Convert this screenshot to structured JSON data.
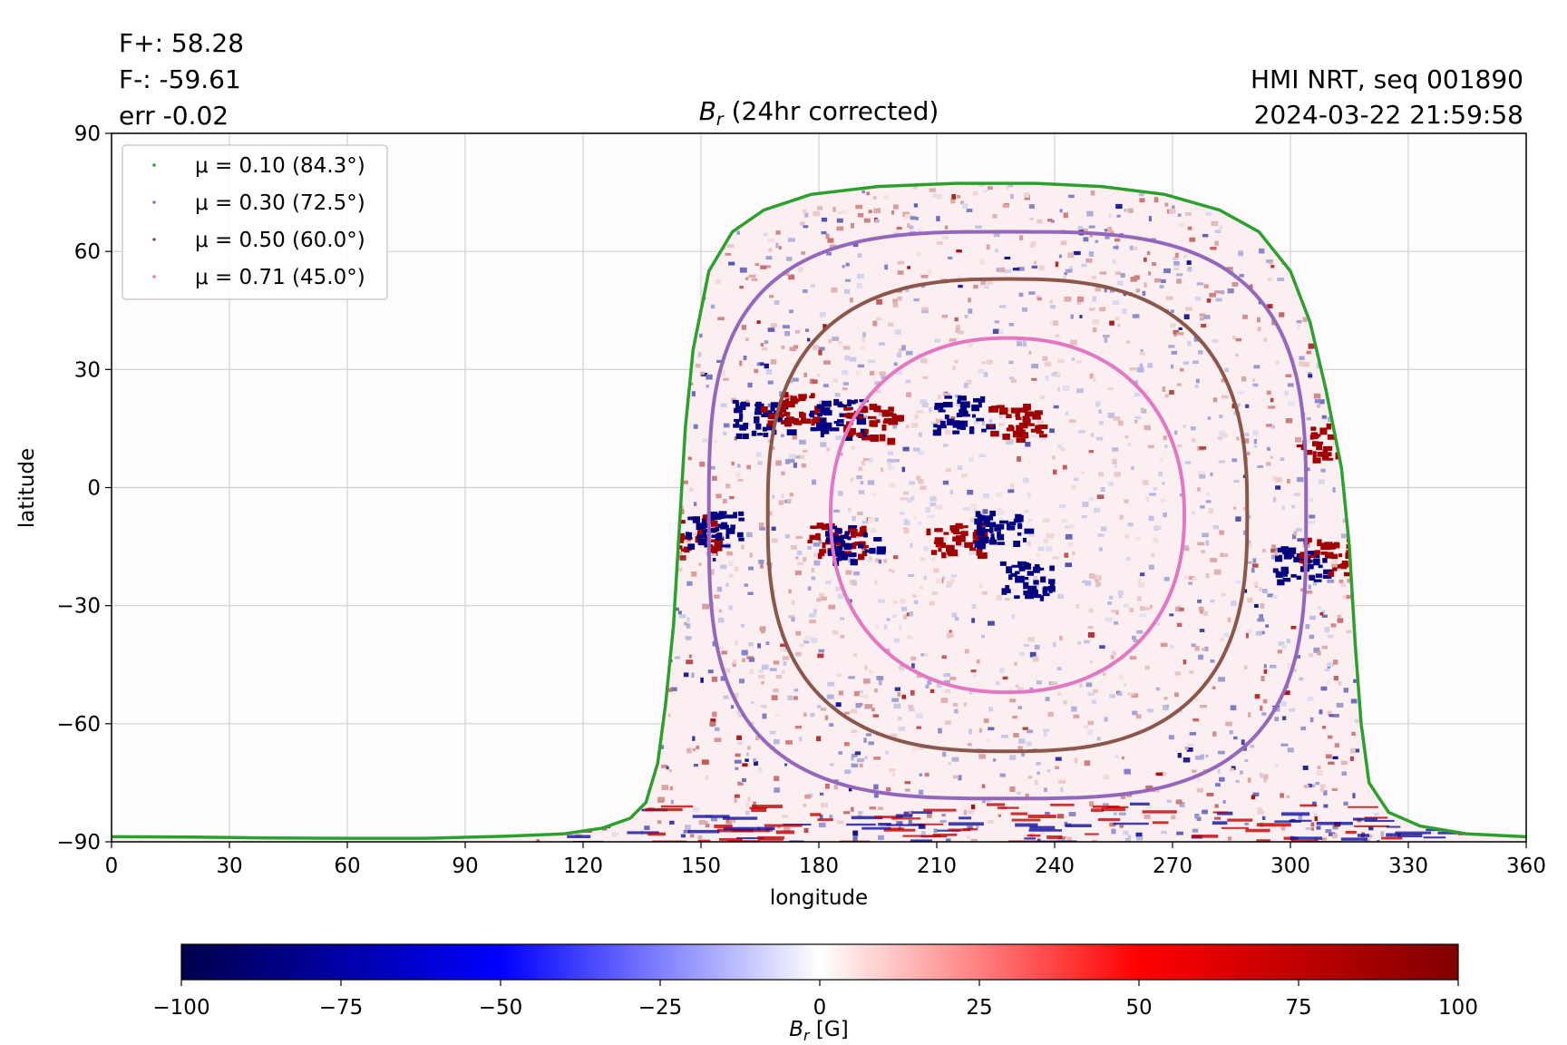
{
  "header": {
    "flux_pos": "F+: 58.28",
    "flux_neg": "F-: -59.61",
    "err": "err -0.02",
    "source": "HMI NRT, seq 001890",
    "timestamp": "2024-03-22 21:59:58"
  },
  "chart_data": {
    "type": "heatmap",
    "title": {
      "symbol": "B",
      "sub": "r",
      "rest": " (24hr corrected)"
    },
    "xlabel": "longitude",
    "ylabel": "latitude",
    "xlim": [
      0,
      360
    ],
    "ylim": [
      -90,
      90
    ],
    "xticks": [
      0,
      30,
      60,
      90,
      120,
      150,
      180,
      210,
      240,
      270,
      300,
      330,
      360
    ],
    "yticks": [
      -90,
      -60,
      -30,
      0,
      30,
      60,
      90
    ],
    "ytick_labels": [
      "−90",
      "−60",
      "−30",
      "0",
      "30",
      "60",
      "90"
    ],
    "grid": true,
    "legend_position": "top-left",
    "contours": [
      {
        "label": "μ = 0.10 (84.3°)",
        "mu": 0.1,
        "angle_deg": 84.3,
        "color": "#2ca02c",
        "points": [
          [
            0,
            -88.7
          ],
          [
            20,
            -88.8
          ],
          [
            40,
            -89.0
          ],
          [
            60,
            -89.1
          ],
          [
            80,
            -89.1
          ],
          [
            100,
            -88.6
          ],
          [
            115,
            -88.0
          ],
          [
            125,
            -86.5
          ],
          [
            132,
            -84.0
          ],
          [
            136,
            -80.0
          ],
          [
            139,
            -70.0
          ],
          [
            141,
            -55.0
          ],
          [
            143,
            -35.0
          ],
          [
            144.5,
            -10.0
          ],
          [
            146,
            15.0
          ],
          [
            148,
            35.0
          ],
          [
            152,
            55.0
          ],
          [
            158,
            65.0
          ],
          [
            166,
            70.5
          ],
          [
            178,
            74.5
          ],
          [
            195,
            76.5
          ],
          [
            215,
            77.3
          ],
          [
            235,
            77.3
          ],
          [
            252,
            76.5
          ],
          [
            268,
            74.5
          ],
          [
            282,
            70.5
          ],
          [
            292,
            65.0
          ],
          [
            300,
            55.0
          ],
          [
            305,
            42.0
          ],
          [
            309,
            25.0
          ],
          [
            313,
            5.0
          ],
          [
            315,
            -15.0
          ],
          [
            316.5,
            -40.0
          ],
          [
            318,
            -60.0
          ],
          [
            320,
            -75.0
          ],
          [
            325,
            -82.5
          ],
          [
            333,
            -86.0
          ],
          [
            345,
            -88.0
          ],
          [
            360,
            -88.7
          ]
        ]
      },
      {
        "label": "μ = 0.30 (72.5°)",
        "mu": 0.3,
        "angle_deg": 72.5,
        "color": "#9467bd",
        "center": [
          228,
          -7
        ],
        "radius_x": 76,
        "radius_y": 72,
        "exponent": 3.2
      },
      {
        "label": "μ = 0.50 (60.0°)",
        "mu": 0.5,
        "angle_deg": 60.0,
        "color": "#8c564b",
        "center": [
          228,
          -7
        ],
        "radius_x": 61,
        "radius_y": 60,
        "exponent": 2.7
      },
      {
        "label": "μ = 0.71 (45.0°)",
        "mu": 0.71,
        "angle_deg": 45.0,
        "color": "#e377c2",
        "center": [
          228,
          -7
        ],
        "radius_x": 45,
        "radius_y": 45,
        "exponent": 2.2
      }
    ],
    "active_regions": [
      {
        "lon": 165,
        "lat": 18,
        "sign": -1
      },
      {
        "lon": 172,
        "lat": 20,
        "sign": 1
      },
      {
        "lon": 184,
        "lat": 18,
        "sign": -1
      },
      {
        "lon": 193,
        "lat": 17,
        "sign": 1
      },
      {
        "lon": 216,
        "lat": 19,
        "sign": -1
      },
      {
        "lon": 230,
        "lat": 17,
        "sign": 1
      },
      {
        "lon": 214,
        "lat": -12,
        "sign": 1
      },
      {
        "lon": 226,
        "lat": -10,
        "sign": -1
      },
      {
        "lon": 184,
        "lat": -13,
        "sign": 1
      },
      {
        "lon": 188,
        "lat": -14,
        "sign": -1
      },
      {
        "lon": 147,
        "lat": -11,
        "sign": 1
      },
      {
        "lon": 153,
        "lat": -10,
        "sign": -1
      },
      {
        "lon": 308,
        "lat": 12,
        "sign": 1
      },
      {
        "lon": 302,
        "lat": -19,
        "sign": -1
      },
      {
        "lon": 309,
        "lat": -17,
        "sign": 1
      },
      {
        "lon": 232,
        "lat": -23,
        "sign": -1
      }
    ],
    "colorbar": {
      "label_symbol": "B",
      "label_sub": "r",
      "label_rest": " [G]",
      "min": -100,
      "max": 100,
      "ticks": [
        -100,
        -75,
        -50,
        -25,
        0,
        25,
        50,
        75,
        100
      ],
      "tick_labels": [
        "−100",
        "−75",
        "−50",
        "−25",
        "0",
        "25",
        "50",
        "75",
        "100"
      ],
      "colormap": "seismic"
    }
  }
}
